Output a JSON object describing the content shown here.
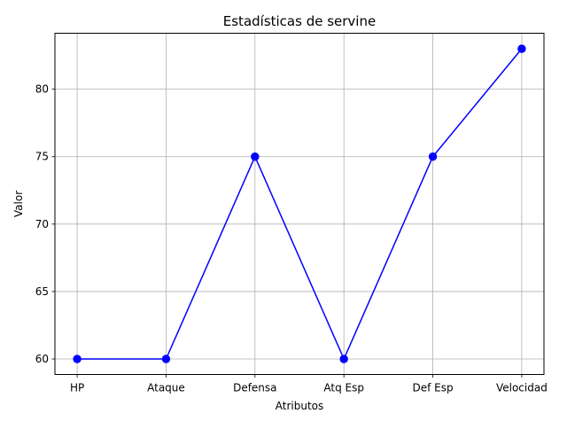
{
  "chart_data": {
    "type": "line",
    "title": "Estadísticas de servine",
    "xlabel": "Atributos",
    "ylabel": "Valor",
    "categories": [
      "HP",
      "Ataque",
      "Defensa",
      "Atq Esp",
      "Def Esp",
      "Velocidad"
    ],
    "series": [
      {
        "values": [
          60,
          60,
          75,
          60,
          75,
          83
        ],
        "color": "#0000ff",
        "marker": "circle"
      }
    ],
    "ylim": [
      58.85,
      84.15
    ],
    "yticks": [
      60,
      65,
      70,
      75,
      80
    ],
    "ytick_labels": [
      "60",
      "65",
      "70",
      "75",
      "80"
    ],
    "grid": true,
    "grid_color": "#b0b0b0"
  }
}
